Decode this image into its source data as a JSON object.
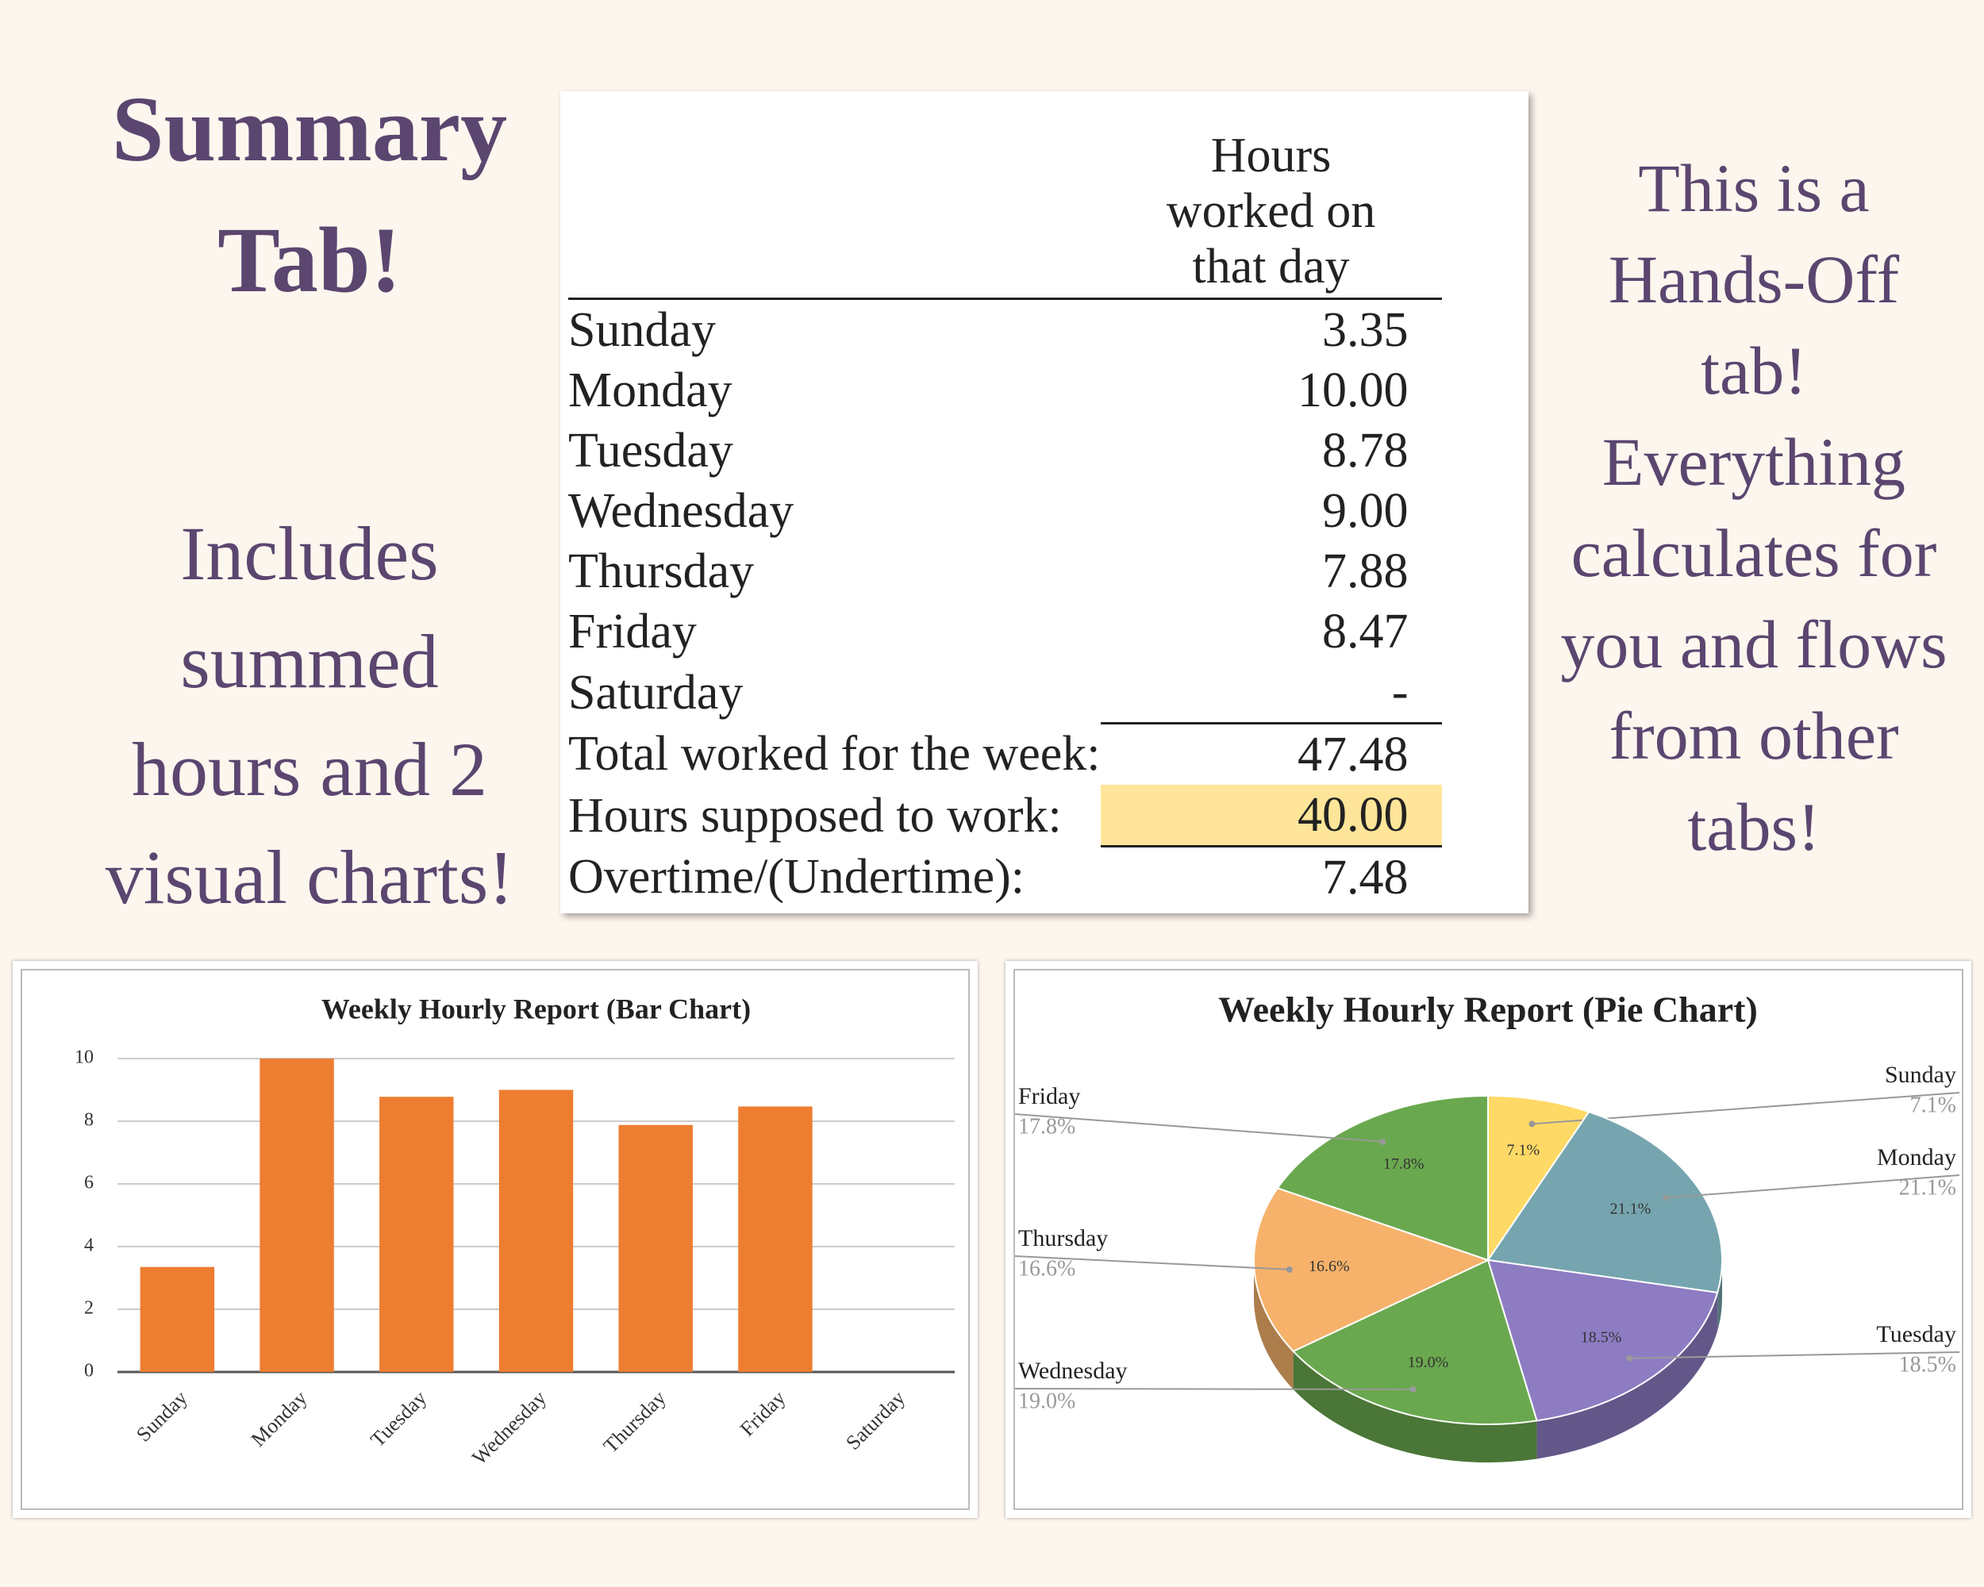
{
  "heading": [
    "Summary",
    "Tab!"
  ],
  "left_note": [
    "Includes",
    "summed",
    "hours and 2",
    "visual charts!"
  ],
  "right_note": [
    "This is a",
    "Hands-Off",
    "tab!",
    "Everything",
    "calculates for",
    "you and flows",
    "from other",
    "tabs!"
  ],
  "table": {
    "header": [
      "Hours",
      "worked on",
      "that day"
    ],
    "rows": [
      [
        "Sunday",
        "3.35"
      ],
      [
        "Monday",
        "10.00"
      ],
      [
        "Tuesday",
        "8.78"
      ],
      [
        "Wednesday",
        "9.00"
      ],
      [
        "Thursday",
        "7.88"
      ],
      [
        "Friday",
        "8.47"
      ],
      [
        "Saturday",
        "-"
      ],
      [
        "Total worked for the week:",
        "47.48"
      ],
      [
        "Hours supposed to work:",
        "40.00"
      ],
      [
        "Overtime/(Undertime):",
        "7.48"
      ]
    ]
  },
  "chart_data": [
    {
      "type": "bar",
      "title": "Weekly Hourly Report (Bar Chart)",
      "categories": [
        "Sunday",
        "Monday",
        "Tuesday",
        "Wednesday",
        "Thursday",
        "Friday",
        "Saturday"
      ],
      "values": [
        3.35,
        10,
        8.78,
        9,
        7.88,
        8.47,
        0
      ],
      "color": "#ed7d31",
      "ylim": [
        0,
        10
      ],
      "yticks": [
        0,
        2,
        4,
        6,
        8,
        10
      ],
      "grid": true
    },
    {
      "type": "pie",
      "title": "Weekly Hourly Report (Pie Chart)",
      "categories": [
        "Sunday",
        "Monday",
        "Tuesday",
        "Wednesday",
        "Thursday",
        "Friday"
      ],
      "values": [
        7.1,
        21.1,
        18.5,
        19.0,
        16.6,
        17.8
      ],
      "value_labels": [
        "7.1%",
        "21.1%",
        "18.5%",
        "19.0%",
        "16.6%",
        "17.8%"
      ],
      "colors": [
        "#ffd966",
        "#76a5af",
        "#8e7cc3",
        "#6aa84f",
        "#f6b26b",
        "#6aa84f"
      ]
    }
  ]
}
